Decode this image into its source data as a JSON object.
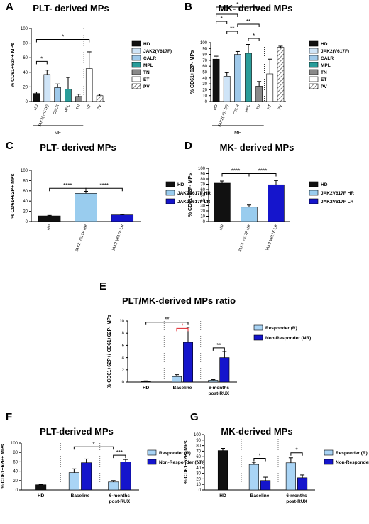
{
  "chart_data": [
    {
      "panel": "A",
      "type": "bar",
      "title": "PLT- derived MPs",
      "ylabel": "% CD61+62P+ MPs",
      "ylim": [
        0,
        100
      ],
      "yticks": [
        0,
        20,
        40,
        60,
        80,
        100
      ],
      "categories": [
        "HD",
        "JAK2(V617F)",
        "CALR",
        "MPL",
        "TN",
        "ET",
        "PV"
      ],
      "values": [
        11,
        37,
        19,
        17,
        7,
        45,
        8
      ],
      "errors": [
        2,
        6,
        5,
        16,
        3,
        23,
        2
      ],
      "patterns": [
        "black",
        "lightblue",
        "lightblue2",
        "teal",
        "gray",
        "white",
        "hatch"
      ],
      "legend": [
        "HD",
        "JAK2(V617F)",
        "CALR",
        "MPL",
        "TN",
        "ET",
        "PV"
      ],
      "group_label": "MF",
      "significance": [
        {
          "from": 0,
          "to": 1,
          "label": "*"
        },
        {
          "from": 0,
          "to": 5,
          "label": "*"
        }
      ]
    },
    {
      "panel": "B",
      "type": "bar",
      "title": "MK- derived MPs",
      "ylabel": "% CD61+62P- MPs",
      "ylim": [
        0,
        100
      ],
      "yticks": [
        0,
        10,
        20,
        30,
        40,
        50,
        60,
        70,
        80,
        90,
        100
      ],
      "categories": [
        "HD",
        "JAK2(V617F)",
        "CALR",
        "MPL",
        "TN",
        "ET",
        "PV"
      ],
      "values": [
        72,
        43,
        80,
        82,
        26,
        47,
        92
      ],
      "errors": [
        5,
        6,
        5,
        15,
        8,
        25,
        2
      ],
      "patterns": [
        "black",
        "lightblue",
        "lightblue2",
        "teal",
        "gray",
        "white",
        "hatch"
      ],
      "legend": [
        "HD",
        "JAK2(V617F)",
        "CALR",
        "MPL",
        "TN",
        "ET",
        "PV"
      ],
      "group_label": "MF",
      "significance": [
        {
          "from": 0,
          "to": 1,
          "label": "*"
        },
        {
          "from": 0,
          "to": 2,
          "label": "*"
        },
        {
          "from": 0,
          "to": 4,
          "label": "*"
        },
        {
          "from": 1,
          "to": 2,
          "label": "**"
        },
        {
          "from": 2,
          "to": 4,
          "label": "**"
        },
        {
          "from": 3,
          "to": 4,
          "label": "*"
        }
      ]
    },
    {
      "panel": "C",
      "type": "bar",
      "title": "PLT- derived MPs",
      "ylabel": "% CD61+62P+ MPs",
      "ylim": [
        0,
        100
      ],
      "yticks": [
        0,
        20,
        40,
        60,
        80,
        100
      ],
      "categories": [
        "HD",
        "JAK2 V617F HR",
        "JAK2 V617F LR"
      ],
      "values": [
        11,
        55,
        13
      ],
      "errors": [
        1,
        4,
        1
      ],
      "colors": [
        "#111111",
        "#99ccee",
        "#1515cc"
      ],
      "legend": [
        "HD",
        "JAK2V617F HR",
        "JAK2V617F LR"
      ],
      "significance": [
        {
          "from": 0,
          "to": 1,
          "label": "****"
        },
        {
          "from": 1,
          "to": 2,
          "label": "****"
        }
      ]
    },
    {
      "panel": "D",
      "type": "bar",
      "title": "MK- derived MPs",
      "ylabel": "% CD61+62P- MPs",
      "ylim": [
        0,
        100
      ],
      "yticks": [
        0,
        10,
        20,
        30,
        40,
        50,
        60,
        70,
        80,
        90,
        100
      ],
      "categories": [
        "HD",
        "JAK2 V617F HR",
        "JAK2 V617F LR"
      ],
      "values": [
        72,
        27,
        69
      ],
      "errors": [
        4,
        4,
        8
      ],
      "colors": [
        "#111111",
        "#99ccee",
        "#1515cc"
      ],
      "legend": [
        "HD",
        "JAK2V617F HR",
        "JAK2V617F LR"
      ],
      "significance": [
        {
          "from": 0,
          "to": 1,
          "label": "****"
        },
        {
          "from": 1,
          "to": 2,
          "label": "****"
        }
      ]
    },
    {
      "panel": "E",
      "type": "bar",
      "title": "PLT/MK-derived MPs ratio",
      "ylabel": "% CD61+62P+/ CD61+62P- MPs",
      "ylim": [
        0,
        10
      ],
      "yticks": [
        0,
        2,
        4,
        6,
        8,
        10
      ],
      "groups": [
        "HD",
        "Baseline",
        "6-months post-RUX"
      ],
      "series": [
        {
          "name": "Responder (R)",
          "values": [
            0.15,
            0.9,
            0.3
          ],
          "errors": [
            0.05,
            0.3,
            0.1
          ]
        },
        {
          "name": "Non-Responder (NR)",
          "values": [
            null,
            6.5,
            4.0
          ],
          "errors": [
            null,
            2.5,
            1.0
          ]
        }
      ],
      "significance": [
        {
          "label": "**",
          "span": "HD to Baseline NR",
          "color": "#000000"
        },
        {
          "label": "*",
          "span": "Baseline R to Baseline NR",
          "color": "#e0222a"
        },
        {
          "label": "**",
          "span": "6-months R to 6-months NR",
          "color": "#000000"
        }
      ]
    },
    {
      "panel": "F",
      "type": "bar",
      "title": "PLT-derived MPs",
      "ylabel": "% CD61+62P+ MPs",
      "ylim": [
        0,
        100
      ],
      "yticks": [
        0,
        20,
        40,
        60,
        80,
        100
      ],
      "groups": [
        "HD",
        "Baseline",
        "6-months post-RUX"
      ],
      "series": [
        {
          "name": "Responder (R)",
          "values": [
            11,
            37,
            17
          ],
          "errors": [
            1,
            8,
            3
          ]
        },
        {
          "name": "Non-Responder (NR)",
          "values": [
            null,
            58,
            60
          ],
          "errors": [
            null,
            8,
            5
          ]
        }
      ],
      "significance": [
        {
          "label": "*",
          "span": "Baseline R to 6-months R"
        },
        {
          "label": "***",
          "span": "6-months R to 6-months NR"
        }
      ]
    },
    {
      "panel": "G",
      "type": "bar",
      "title": "MK-derived MPs",
      "ylabel": "% CD61+62P- MPs",
      "ylim": [
        0,
        100
      ],
      "yticks": [
        0,
        10,
        20,
        30,
        40,
        50,
        60,
        70,
        80,
        90,
        100
      ],
      "groups": [
        "HD",
        "Baseline",
        "6-months post-RUX"
      ],
      "series": [
        {
          "name": "Responder (R)",
          "values": [
            71,
            46,
            49
          ],
          "errors": [
            4,
            4,
            9
          ]
        },
        {
          "name": "Non-Responder (NR)",
          "values": [
            null,
            17,
            22
          ],
          "errors": [
            null,
            6,
            5
          ]
        }
      ],
      "significance": [
        {
          "label": "*",
          "span": "Baseline R to Baseline NR"
        },
        {
          "label": "*",
          "span": "6-months R to 6-months NR"
        }
      ]
    }
  ]
}
